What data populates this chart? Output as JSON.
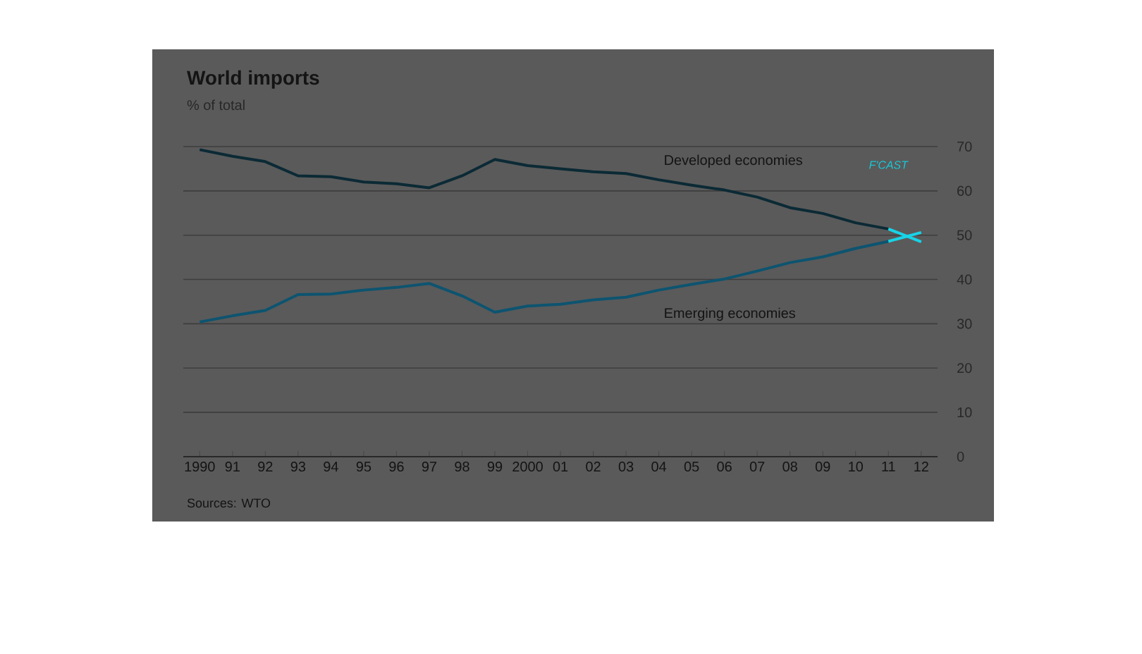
{
  "chart_data": {
    "type": "line",
    "title": "World imports",
    "subtitle": "% of total",
    "x": [
      1990,
      1991,
      1992,
      1993,
      1994,
      1995,
      1996,
      1997,
      1998,
      1999,
      2000,
      2001,
      2002,
      2003,
      2004,
      2005,
      2006,
      2007,
      2008,
      2009,
      2010,
      2011,
      2012
    ],
    "series": [
      {
        "name": "Developed economies",
        "color": "#0b2a35",
        "values": [
          69.3,
          67.8,
          66.6,
          63.4,
          63.2,
          62.0,
          61.6,
          60.7,
          63.4,
          67.1,
          65.7,
          65.0,
          64.3,
          63.9,
          62.5,
          61.3,
          60.2,
          58.6,
          56.2,
          54.9,
          52.8,
          51.4,
          null
        ]
      },
      {
        "name": "Emerging economies",
        "color": "#0d5470",
        "values": [
          30.4,
          31.8,
          33.0,
          36.6,
          36.7,
          37.6,
          38.2,
          39.1,
          36.3,
          32.6,
          34.0,
          34.4,
          35.4,
          36.0,
          37.6,
          38.9,
          40.1,
          41.9,
          43.8,
          45.1,
          47.0,
          48.6,
          null
        ]
      },
      {
        "color": "#19d3e6",
        "values": [
          null,
          null,
          null,
          null,
          null,
          null,
          null,
          null,
          null,
          null,
          null,
          null,
          null,
          null,
          null,
          null,
          null,
          null,
          null,
          null,
          null,
          51.4,
          48.5
        ]
      },
      {
        "color": "#19d3e6",
        "values": [
          null,
          null,
          null,
          null,
          null,
          null,
          null,
          null,
          null,
          null,
          null,
          null,
          null,
          null,
          null,
          null,
          null,
          null,
          null,
          null,
          null,
          48.6,
          50.6
        ]
      }
    ],
    "xlim": [
      1989.5,
      2012.5
    ],
    "xticks": [
      {
        "value": 1990,
        "label": "1990"
      },
      {
        "value": 1991,
        "label": "91"
      },
      {
        "value": 1992,
        "label": "92"
      },
      {
        "value": 1993,
        "label": "93"
      },
      {
        "value": 1994,
        "label": "94"
      },
      {
        "value": 1995,
        "label": "95"
      },
      {
        "value": 1996,
        "label": "96"
      },
      {
        "value": 1997,
        "label": "97"
      },
      {
        "value": 1998,
        "label": "98"
      },
      {
        "value": 1999,
        "label": "99"
      },
      {
        "value": 2000,
        "label": "2000"
      },
      {
        "value": 2001,
        "label": "01"
      },
      {
        "value": 2002,
        "label": "02"
      },
      {
        "value": 2003,
        "label": "03"
      },
      {
        "value": 2004,
        "label": "04"
      },
      {
        "value": 2005,
        "label": "05"
      },
      {
        "value": 2006,
        "label": "06"
      },
      {
        "value": 2007,
        "label": "07"
      },
      {
        "value": 2008,
        "label": "08"
      },
      {
        "value": 2009,
        "label": "09"
      },
      {
        "value": 2010,
        "label": "10"
      },
      {
        "value": 2011,
        "label": "11"
      },
      {
        "value": 2012,
        "label": "12"
      }
    ],
    "ylim": [
      0,
      70
    ],
    "yticks": [
      0,
      10,
      20,
      30,
      40,
      50,
      60,
      70
    ],
    "grid": "y",
    "legend": false,
    "marker": "none",
    "line_style": "solid",
    "annotations": [
      "F'CAST",
      "Sources: WTO"
    ]
  }
}
